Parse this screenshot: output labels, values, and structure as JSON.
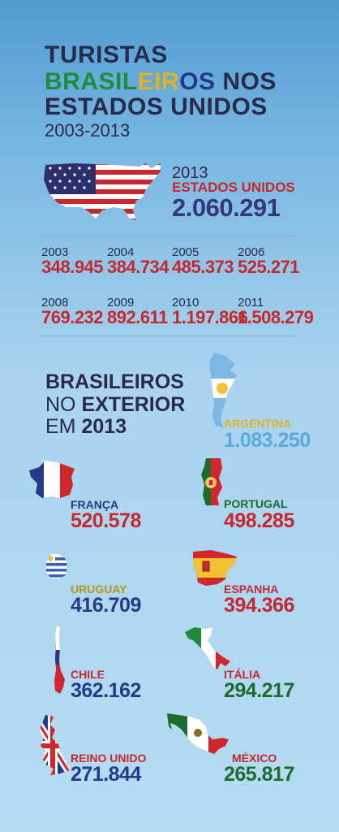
{
  "header": {
    "line1": "TURISTAS",
    "line2_part1": "BRASIL",
    "line2_part2": "EIR",
    "line2_part3": "OS",
    "line2_part4": "NOS",
    "line3": "ESTADOS UNIDOS",
    "years": "2003-2013"
  },
  "usa": {
    "year": "2013",
    "label": "ESTADOS UNIDOS",
    "value": "2.060.291"
  },
  "yearly": [
    {
      "year": "2003",
      "value": "348.945"
    },
    {
      "year": "2004",
      "value": "384.734"
    },
    {
      "year": "2005",
      "value": "485.373"
    },
    {
      "year": "2006",
      "value": "525.271"
    },
    {
      "year": "2008",
      "value": "769.232"
    },
    {
      "year": "2009",
      "value": "892.611"
    },
    {
      "year": "2010",
      "value": "1.197.866"
    },
    {
      "year": "2011",
      "value": "1.508.279"
    }
  ],
  "exterior": {
    "line1": "BRASILEIROS",
    "line2_a": "NO",
    "line2_b": "EXTERIOR",
    "line3_a": "EM",
    "line3_b": "2013"
  },
  "countries": [
    {
      "name": "ARGENTINA",
      "value": "1.083.250",
      "name_color": "#e0b325",
      "value_color": "#5aa9dc",
      "icon": "argentina-flag-map-icon"
    },
    {
      "name": "FRANÇA",
      "value": "520.578",
      "name_color": "#233a8a",
      "value_color": "#c6282e",
      "icon": "france-flag-map-icon"
    },
    {
      "name": "PORTUGAL",
      "value": "498.285",
      "name_color": "#1d6b2f",
      "value_color": "#c6282e",
      "icon": "portugal-flag-map-icon"
    },
    {
      "name": "URUGUAY",
      "value": "416.709",
      "name_color": "#b8961c",
      "value_color": "#233a8a",
      "icon": "uruguay-flag-map-icon"
    },
    {
      "name": "ESPANHA",
      "value": "394.366",
      "name_color": "#c6282e",
      "value_color": "#c6282e",
      "icon": "spain-flag-map-icon"
    },
    {
      "name": "CHILE",
      "value": "362.162",
      "name_color": "#c6282e",
      "value_color": "#233a8a",
      "icon": "chile-flag-map-icon"
    },
    {
      "name": "ITÁLIA",
      "value": "294.217",
      "name_color": "#c6282e",
      "value_color": "#1d6b2f",
      "icon": "italy-flag-map-icon"
    },
    {
      "name": "REINO UNIDO",
      "value": "271.844",
      "name_color": "#c6282e",
      "value_color": "#233a8a",
      "icon": "uk-flag-map-icon"
    },
    {
      "name": "MÉXICO",
      "value": "265.817",
      "name_color": "#c6282e",
      "value_color": "#1d6b2f",
      "icon": "mexico-flag-map-icon"
    }
  ]
}
